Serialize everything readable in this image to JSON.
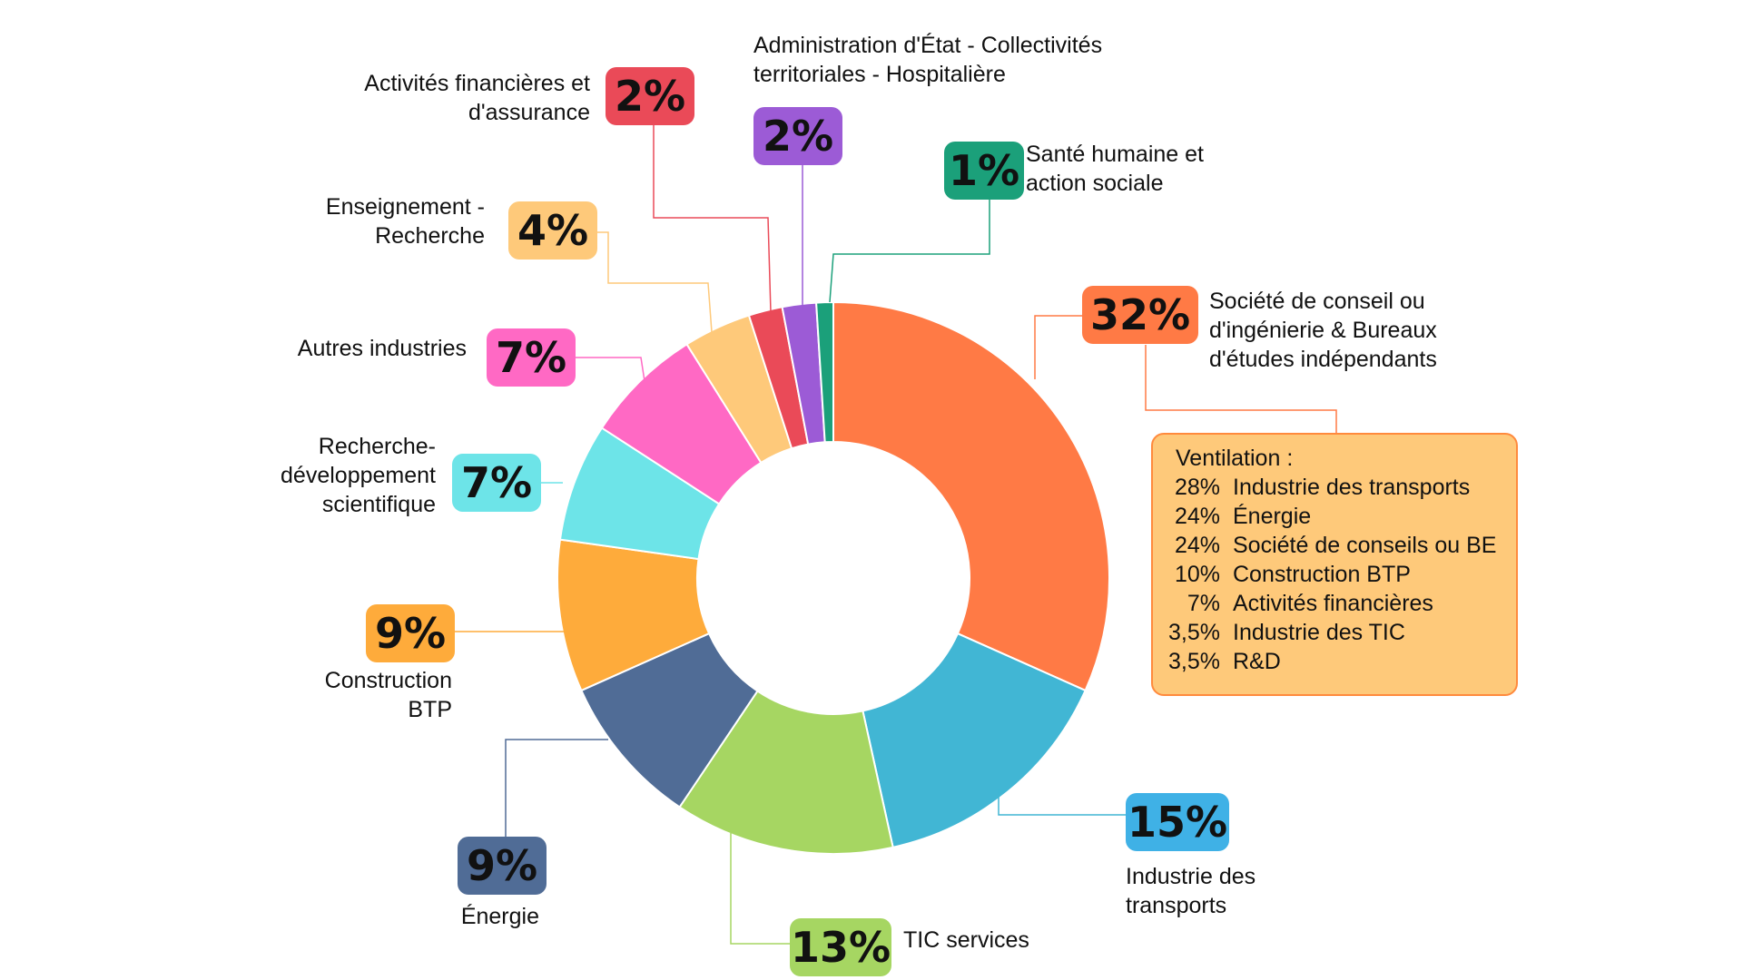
{
  "chart_data": {
    "type": "pie",
    "donut": true,
    "slices": [
      {
        "label": "Société de conseil ou d'ingénierie & Bureaux d'études indépendants",
        "label_lines": [
          "Société de conseil ou",
          "d'ingénierie & Bureaux",
          "d'études indépendants"
        ],
        "value": 32,
        "value_label": "32%",
        "color": "#ff7a45",
        "badge_color": "#ff7a45"
      },
      {
        "label": "Industrie des transports",
        "label_lines": [
          "Industrie des",
          "transports"
        ],
        "value": 15,
        "value_label": "15%",
        "color": "#41b6d4",
        "badge_color": "#3fb1e6"
      },
      {
        "label": "TIC services",
        "label_lines": [
          "TIC services"
        ],
        "value": 13,
        "value_label": "13%",
        "color": "#a6d662",
        "badge_color": "#a6d662"
      },
      {
        "label": "Énergie",
        "label_lines": [
          "Énergie"
        ],
        "value": 9,
        "value_label": "9%",
        "color": "#506c96",
        "badge_color": "#506c96"
      },
      {
        "label": "Construction BTP",
        "label_lines": [
          "Construction",
          "BTP"
        ],
        "value": 9,
        "value_label": "9%",
        "color": "#feab3b",
        "badge_color": "#feab3b"
      },
      {
        "label": "Recherche-développement scientifique",
        "label_lines": [
          "Recherche-",
          "développement",
          "scientifique"
        ],
        "value": 7,
        "value_label": "7%",
        "color": "#6de4e8",
        "badge_color": "#6de4e8"
      },
      {
        "label": "Autres industries",
        "label_lines": [
          "Autres industries"
        ],
        "value": 7,
        "value_label": "7%",
        "color": "#ff69c4",
        "badge_color": "#ff69c4"
      },
      {
        "label": "Enseignement - Recherche",
        "label_lines": [
          "Enseignement -",
          "Recherche"
        ],
        "value": 4,
        "value_label": "4%",
        "color": "#fec97a",
        "badge_color": "#fec97a"
      },
      {
        "label": "Activités financières et d'assurance",
        "label_lines": [
          "Activités financières et",
          "d'assurance"
        ],
        "value": 2,
        "value_label": "2%",
        "color": "#ea4a58",
        "badge_color": "#ea4a58"
      },
      {
        "label": "Administration d'État - Collectivités territoriales - Hospitalière",
        "label_lines": [
          "Administration d'État - Collectivités",
          "territoriales - Hospitalière"
        ],
        "value": 2,
        "value_label": "2%",
        "color": "#9c5bd6",
        "badge_color": "#9c5bd6"
      },
      {
        "label": "Santé humaine et action sociale",
        "label_lines": [
          "Santé humaine et",
          "action sociale"
        ],
        "value": 1,
        "value_label": "1%",
        "color": "#1ba07a",
        "badge_color": "#1ba07a"
      }
    ],
    "ventilation": {
      "title": "Ventilation :",
      "rows": [
        {
          "pct": "28%",
          "label": "Industrie des transports"
        },
        {
          "pct": "24%",
          "label": "Énergie"
        },
        {
          "pct": "24%",
          "label": "Société de conseils ou BE"
        },
        {
          "pct": "10%",
          "label": "Construction BTP"
        },
        {
          "pct": "7%",
          "label": "Activités financières"
        },
        {
          "pct": "3,5%",
          "label": "Industrie des TIC"
        },
        {
          "pct": "3,5%",
          "label": "R&D"
        }
      ]
    }
  }
}
